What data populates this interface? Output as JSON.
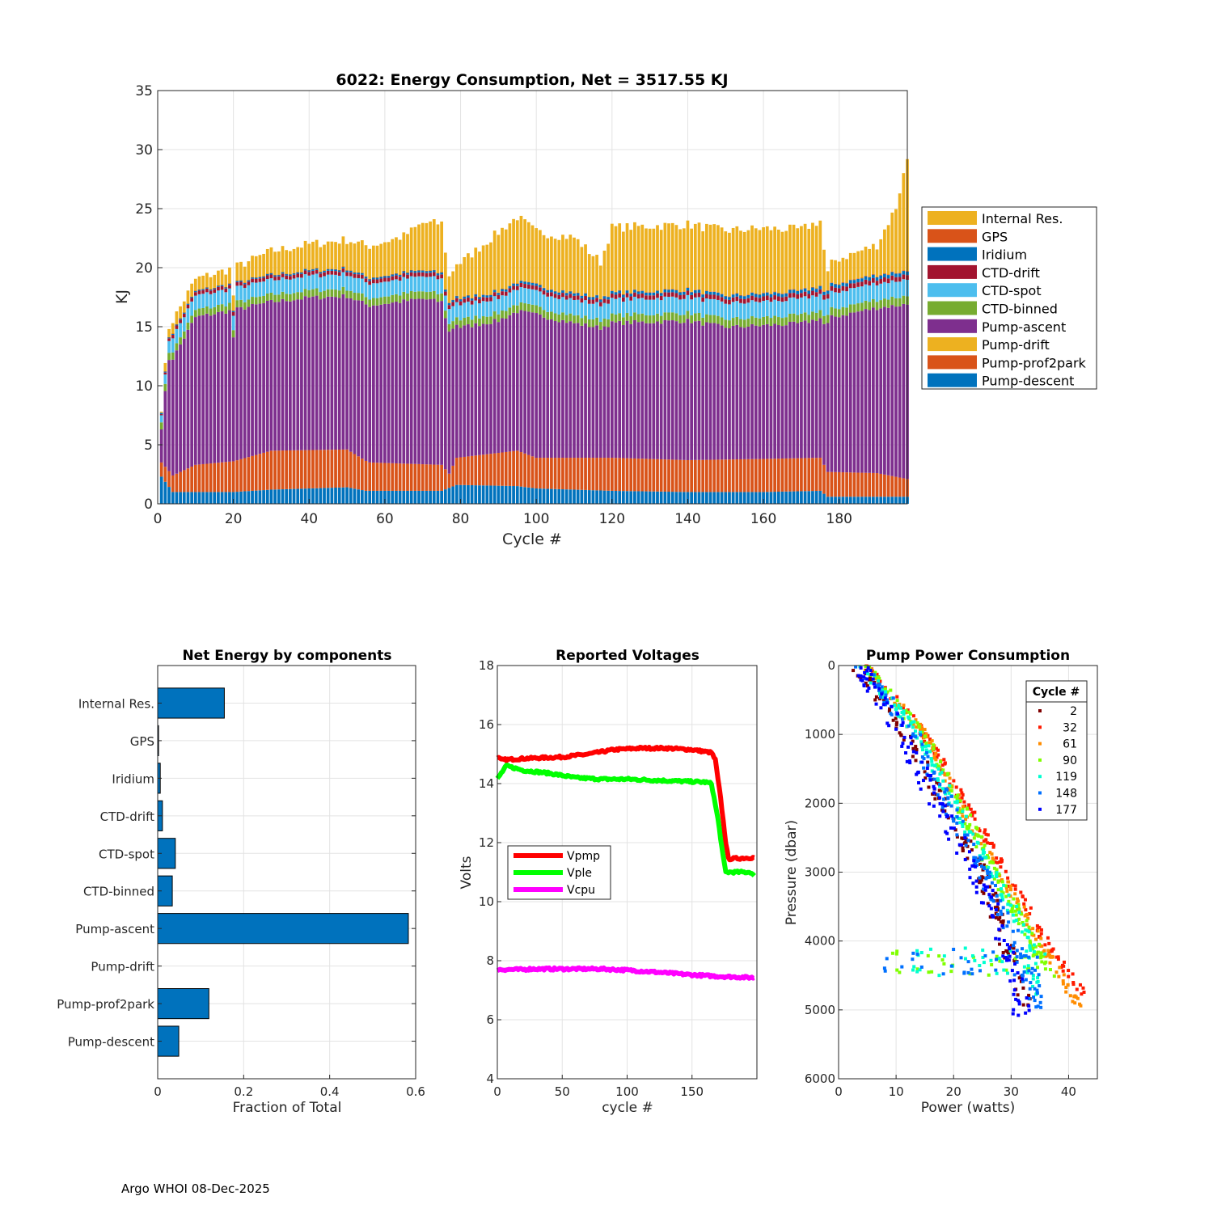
{
  "footer": "Argo WHOI 08-Dec-2025",
  "chart_data": [
    {
      "id": "energy",
      "type": "bar",
      "stacked": true,
      "title": "6022: Energy Consumption,  Net = 3517.55 KJ",
      "xlabel": "Cycle #",
      "ylabel": "KJ",
      "xlim": [
        0,
        198
      ],
      "ylim": [
        0,
        35
      ],
      "xticks": [
        0,
        20,
        40,
        60,
        80,
        100,
        120,
        140,
        160,
        180
      ],
      "yticks": [
        0,
        5,
        10,
        15,
        20,
        25,
        30,
        35
      ],
      "grid": true,
      "legend_position": "outside-right",
      "legend_order": [
        "Internal Res.",
        "GPS",
        "Iridium",
        "CTD-drift",
        "CTD-spot",
        "CTD-binned",
        "Pump-ascent",
        "Pump-drift",
        "Pump-prof2park",
        "Pump-descent"
      ],
      "colors": {
        "Pump-descent": "#0072bd",
        "Pump-prof2park": "#d95319",
        "Pump-drift": "#edb120",
        "Pump-ascent": "#7e2f8e",
        "CTD-binned": "#77ac30",
        "CTD-spot": "#4dbeee",
        "CTD-drift": "#a2142f",
        "Iridium": "#0072bd",
        "GPS": "#d95319",
        "Internal Res.": "#edb120"
      },
      "cycles": 198,
      "series": [
        {
          "name": "Pump-descent",
          "keys": [
            [
              1,
              2.3
            ],
            [
              4,
              1.0
            ],
            [
              20,
              1.0
            ],
            [
              30,
              1.2
            ],
            [
              50,
              1.4
            ],
            [
              55,
              1.1
            ],
            [
              75,
              1.1
            ],
            [
              79,
              1.6
            ],
            [
              95,
              1.5
            ],
            [
              100,
              1.3
            ],
            [
              120,
              1.1
            ],
            [
              140,
              1.0
            ],
            [
              160,
              1.0
            ],
            [
              175,
              1.1
            ],
            [
              177,
              0.6
            ],
            [
              198,
              0.6
            ]
          ]
        },
        {
          "name": "Pump-prof2park",
          "keys": [
            [
              1,
              1.2
            ],
            [
              4,
              1.4
            ],
            [
              10,
              2.3
            ],
            [
              20,
              2.6
            ],
            [
              30,
              3.3
            ],
            [
              50,
              3.2
            ],
            [
              56,
              2.4
            ],
            [
              75,
              2.2
            ],
            [
              77,
              1.2
            ],
            [
              79,
              2.3
            ],
            [
              95,
              3.0
            ],
            [
              100,
              2.6
            ],
            [
              120,
              2.8
            ],
            [
              140,
              2.7
            ],
            [
              160,
              2.8
            ],
            [
              175,
              2.8
            ],
            [
              177,
              2.1
            ],
            [
              190,
              2.0
            ],
            [
              198,
              1.5
            ]
          ]
        },
        {
          "name": "Pump-drift",
          "keys": [
            [
              1,
              0
            ],
            [
              198,
              0
            ]
          ]
        },
        {
          "name": "Pump-ascent",
          "keys": [
            [
              1,
              3.0
            ],
            [
              3,
              9.5
            ],
            [
              10,
              12.5
            ],
            [
              20,
              12.8
            ],
            [
              30,
              12.6
            ],
            [
              40,
              12.9
            ],
            [
              50,
              13.0
            ],
            [
              70,
              14.0
            ],
            [
              75,
              13.8
            ],
            [
              77,
              12.0
            ],
            [
              80,
              11.0
            ],
            [
              90,
              11.2
            ],
            [
              95,
              11.8
            ],
            [
              100,
              12.1
            ],
            [
              110,
              11.4
            ],
            [
              117,
              11.0
            ],
            [
              120,
              11.4
            ],
            [
              140,
              11.8
            ],
            [
              150,
              11.2
            ],
            [
              160,
              11.3
            ],
            [
              170,
              11.4
            ],
            [
              176,
              11.9
            ],
            [
              178,
              13.1
            ],
            [
              190,
              14.0
            ],
            [
              198,
              14.8
            ]
          ]
        },
        {
          "name": "CTD-binned",
          "keys": [
            [
              1,
              0.6
            ],
            [
              198,
              0.7
            ]
          ]
        },
        {
          "name": "CTD-spot",
          "keys": [
            [
              1,
              0.6
            ],
            [
              4,
              1.2
            ],
            [
              198,
              1.4
            ]
          ]
        },
        {
          "name": "CTD-drift",
          "keys": [
            [
              1,
              0.1
            ],
            [
              4,
              0.3
            ],
            [
              198,
              0.4
            ]
          ]
        },
        {
          "name": "Iridium",
          "keys": [
            [
              1,
              0.1
            ],
            [
              198,
              0.3
            ]
          ]
        },
        {
          "name": "GPS",
          "keys": [
            [
              1,
              0
            ],
            [
              198,
              0.05
            ]
          ]
        },
        {
          "name": "Internal Res.",
          "keys": [
            [
              1,
              0.3
            ],
            [
              4,
              1.0
            ],
            [
              10,
              1.0
            ],
            [
              20,
              1.3
            ],
            [
              30,
              2.0
            ],
            [
              50,
              2.4
            ],
            [
              65,
              3.1
            ],
            [
              70,
              4.0
            ],
            [
              75,
              4.2
            ],
            [
              77,
              2.2
            ],
            [
              80,
              3.0
            ],
            [
              90,
              5.0
            ],
            [
              95,
              5.5
            ],
            [
              100,
              4.5
            ],
            [
              110,
              4.7
            ],
            [
              117,
              3.0
            ],
            [
              120,
              5.5
            ],
            [
              140,
              5.5
            ],
            [
              150,
              5.5
            ],
            [
              160,
              5.5
            ],
            [
              170,
              5.2
            ],
            [
              175,
              5.5
            ],
            [
              177,
              1.5
            ],
            [
              179,
              2.0
            ],
            [
              190,
              2.5
            ],
            [
              195,
              5.5
            ],
            [
              198,
              9.5
            ]
          ]
        }
      ]
    },
    {
      "id": "components",
      "type": "bar",
      "orientation": "horizontal",
      "title": "Net Energy by components",
      "xlabel": "Fraction of Total",
      "ylabel": "",
      "xlim": [
        0,
        0.6
      ],
      "xticks": [
        0,
        0.2,
        0.4,
        0.6
      ],
      "xtick_labels": [
        "0",
        "0.2",
        "0.4",
        "0.6"
      ],
      "categories": [
        "Internal Res.",
        "GPS",
        "Iridium",
        "CTD-drift",
        "CTD-spot",
        "CTD-binned",
        "Pump-ascent",
        "Pump-drift",
        "Pump-prof2park",
        "Pump-descent"
      ],
      "values": [
        0.155,
        0.002,
        0.006,
        0.011,
        0.041,
        0.034,
        0.583,
        0,
        0.119,
        0.049
      ],
      "color": "#0072bd",
      "grid": true
    },
    {
      "id": "voltages",
      "type": "line",
      "title": "Reported Voltages",
      "xlabel": "cycle #",
      "ylabel": "Volts",
      "xlim": [
        0,
        200
      ],
      "ylim": [
        4,
        18
      ],
      "xticks": [
        0,
        50,
        100,
        150
      ],
      "yticks": [
        4,
        6,
        8,
        10,
        12,
        14,
        16,
        18
      ],
      "grid": true,
      "legend_position": "left-middle",
      "series": [
        {
          "name": "Vpmp",
          "color": "#ff0000",
          "points": [
            [
              0,
              14.9
            ],
            [
              3,
              14.8
            ],
            [
              20,
              14.85
            ],
            [
              50,
              14.9
            ],
            [
              70,
              15.0
            ],
            [
              90,
              15.15
            ],
            [
              110,
              15.2
            ],
            [
              130,
              15.2
            ],
            [
              150,
              15.15
            ],
            [
              165,
              15.05
            ],
            [
              168,
              14.8
            ],
            [
              172,
              13.5
            ],
            [
              176,
              12.0
            ],
            [
              178,
              11.45
            ],
            [
              200,
              11.5
            ]
          ]
        },
        {
          "name": "Vple",
          "color": "#00ff00",
          "points": [
            [
              0,
              14.15
            ],
            [
              3,
              14.35
            ],
            [
              7,
              14.6
            ],
            [
              20,
              14.45
            ],
            [
              40,
              14.35
            ],
            [
              60,
              14.2
            ],
            [
              80,
              14.15
            ],
            [
              100,
              14.15
            ],
            [
              130,
              14.1
            ],
            [
              160,
              14.05
            ],
            [
              165,
              14.0
            ],
            [
              170,
              12.8
            ],
            [
              174,
              11.5
            ],
            [
              176,
              11.0
            ],
            [
              195,
              11.0
            ],
            [
              198,
              10.85
            ]
          ]
        },
        {
          "name": "Vcpu",
          "color": "#ff00ff",
          "points": [
            [
              0,
              7.7
            ],
            [
              20,
              7.7
            ],
            [
              25,
              7.72
            ],
            [
              60,
              7.72
            ],
            [
              80,
              7.72
            ],
            [
              100,
              7.68
            ],
            [
              120,
              7.62
            ],
            [
              150,
              7.52
            ],
            [
              170,
              7.47
            ],
            [
              200,
              7.42
            ]
          ]
        }
      ]
    },
    {
      "id": "pump-power",
      "type": "scatter",
      "title": "Pump Power Consumption",
      "xlabel": "Power (watts)",
      "ylabel": "Pressure (dbar)",
      "xlim": [
        0,
        45
      ],
      "ylim": [
        0,
        6000
      ],
      "y_reversed": true,
      "xticks": [
        0,
        10,
        20,
        30,
        40
      ],
      "yticks": [
        0,
        1000,
        2000,
        3000,
        4000,
        5000,
        6000
      ],
      "grid": true,
      "legend_title": "Cycle #",
      "legend_position": "top-right",
      "series": [
        {
          "name": "2",
          "color": "#800000",
          "line": [
            [
              3,
              0
            ],
            [
              12,
              1000
            ],
            [
              18,
              2000
            ],
            [
              25,
              3000
            ],
            [
              29,
              4000
            ],
            [
              33,
              5000
            ]
          ],
          "spread": 1.2
        },
        {
          "name": "32",
          "color": "#ff1a00",
          "line": [
            [
              5,
              0
            ],
            [
              15,
              1000
            ],
            [
              22,
              2000
            ],
            [
              29,
              3000
            ],
            [
              36,
              4000
            ],
            [
              43,
              4800
            ]
          ],
          "spread": 0.8
        },
        {
          "name": "61",
          "color": "#ff8c00",
          "line": [
            [
              4.5,
              0
            ],
            [
              15,
              1000
            ],
            [
              21,
              2000
            ],
            [
              28,
              3000
            ],
            [
              35,
              4000
            ],
            [
              42,
              5000
            ]
          ],
          "spread": 0.8
        },
        {
          "name": "90",
          "color": "#80ff00",
          "line": [
            [
              4.5,
              0
            ],
            [
              14.5,
              1000
            ],
            [
              21,
              2000
            ],
            [
              27,
              3000
            ],
            [
              34,
              4000
            ],
            [
              37,
              4600
            ]
          ],
          "spread": 1.0
        },
        {
          "name": "119",
          "color": "#00ffd0",
          "line": [
            [
              4,
              0
            ],
            [
              14,
              1000
            ],
            [
              20,
              2000
            ],
            [
              27,
              3000
            ],
            [
              33,
              4000
            ],
            [
              34,
              4800
            ]
          ],
          "spread": 1.0
        },
        {
          "name": "148",
          "color": "#0070ff",
          "line": [
            [
              4,
              0
            ],
            [
              13,
              1000
            ],
            [
              19,
              2000
            ],
            [
              25,
              3000
            ],
            [
              31,
              4000
            ],
            [
              35,
              5000
            ]
          ],
          "spread": 1.3
        },
        {
          "name": "177",
          "color": "#0000ff",
          "line": [
            [
              3.5,
              0
            ],
            [
              11,
              1000
            ],
            [
              17,
              2000
            ],
            [
              24,
              3000
            ],
            [
              29,
              4000
            ],
            [
              32,
              5100
            ]
          ],
          "spread": 1.6
        }
      ]
    }
  ]
}
